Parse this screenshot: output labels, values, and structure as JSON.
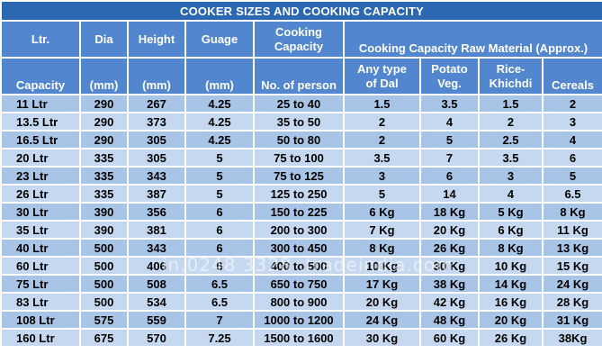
{
  "title": "COOKER SIZES AND COOKING CAPACITY",
  "headers": {
    "ltr_top": "Ltr.",
    "ltr_bottom": "Capacity",
    "dia_top": "Dia",
    "dia_bottom": "(mm)",
    "height_top": "Height",
    "height_bottom": "(mm)",
    "guage_top": "Guage",
    "guage_bottom": "(mm)",
    "cooking_capacity_line1": "Cooking",
    "cooking_capacity_line2": "Capacity",
    "no_of_person": "No. of person",
    "raw_material": "Cooking Capacity Raw Material (Approx.)",
    "dal_line1": "Any type",
    "dal_line2": "of Dal",
    "potato_line1": "Potato",
    "potato_line2": "Veg.",
    "rice_line1": "Rice-",
    "rice_line2": "Khichdi",
    "cereals": "Cereals"
  },
  "rows": [
    {
      "cap": "11 Ltr",
      "dia": "290",
      "height": "267",
      "guage": "4.25",
      "persons": "25 to 40",
      "dal": "1.5",
      "potato": "3.5",
      "rice": "1.5",
      "cereals": "2"
    },
    {
      "cap": "13.5 Ltr",
      "dia": "290",
      "height": "373",
      "guage": "4.25",
      "persons": "35 to 50",
      "dal": "2",
      "potato": "4",
      "rice": "2",
      "cereals": "3"
    },
    {
      "cap": "16.5 Ltr",
      "dia": "290",
      "height": "305",
      "guage": "4.25",
      "persons": "50 to 80",
      "dal": "2",
      "potato": "5",
      "rice": "2.5",
      "cereals": "4"
    },
    {
      "cap": "20 Ltr",
      "dia": "335",
      "height": "305",
      "guage": "5",
      "persons": "75 to 100",
      "dal": "3.5",
      "potato": "7",
      "rice": "3.5",
      "cereals": "6"
    },
    {
      "cap": "23 Ltr",
      "dia": "335",
      "height": "343",
      "guage": "5",
      "persons": "75 to 125",
      "dal": "3",
      "potato": "6",
      "rice": "3",
      "cereals": "5"
    },
    {
      "cap": "26 Ltr",
      "dia": "335",
      "height": "387",
      "guage": "5",
      "persons": "125 to 250",
      "dal": "5",
      "potato": "14",
      "rice": "4",
      "cereals": "6.5"
    },
    {
      "cap": "30 Ltr",
      "dia": "390",
      "height": "356",
      "guage": "6",
      "persons": "150 to 225",
      "dal": "6 Kg",
      "potato": "18 Kg",
      "rice": "5 Kg",
      "cereals": "8 Kg"
    },
    {
      "cap": "35 Ltr",
      "dia": "390",
      "height": "381",
      "guage": "6",
      "persons": "200 to 300",
      "dal": "7 Kg",
      "potato": "20 Kg",
      "rice": "6 Kg",
      "cereals": "11 Kg"
    },
    {
      "cap": "40 Ltr",
      "dia": "500",
      "height": "343",
      "guage": "6",
      "persons": "300 to 450",
      "dal": "8 Kg",
      "potato": "26 Kg",
      "rice": "8 Kg",
      "cereals": "13 Kg"
    },
    {
      "cap": "60 Ltr",
      "dia": "500",
      "height": "406",
      "guage": "6",
      "persons": "400 to 500",
      "dal": "10 Kg",
      "potato": "30 Kg",
      "rice": "10 Kg",
      "cereals": "15 Kg"
    },
    {
      "cap": "75 Ltr",
      "dia": "500",
      "height": "508",
      "guage": "6.5",
      "persons": "650 to 750",
      "dal": "17 Kg",
      "potato": "38 Kg",
      "rice": "14 Kg",
      "cereals": "24 Kg"
    },
    {
      "cap": "83 Ltr",
      "dia": "500",
      "height": "534",
      "guage": "6.5",
      "persons": "800 to 900",
      "dal": "20 Kg",
      "potato": "42 Kg",
      "rice": "16 Kg",
      "cereals": "28 Kg"
    },
    {
      "cap": "108 Ltr",
      "dia": "575",
      "height": "559",
      "guage": "7",
      "persons": "1000 to 1200",
      "dal": "24 Kg",
      "potato": "48 Kg",
      "rice": "20 Kg",
      "cereals": "31 Kg"
    },
    {
      "cap": "160 Ltr",
      "dia": "675",
      "height": "570",
      "guage": "7.25",
      "persons": "1500 to 1600",
      "dal": "30 Kg",
      "potato": "60 Kg",
      "rice": "26 Kg",
      "cereals": "38Kg"
    }
  ],
  "watermark": "in.0248 3328 .tradeindia.com"
}
